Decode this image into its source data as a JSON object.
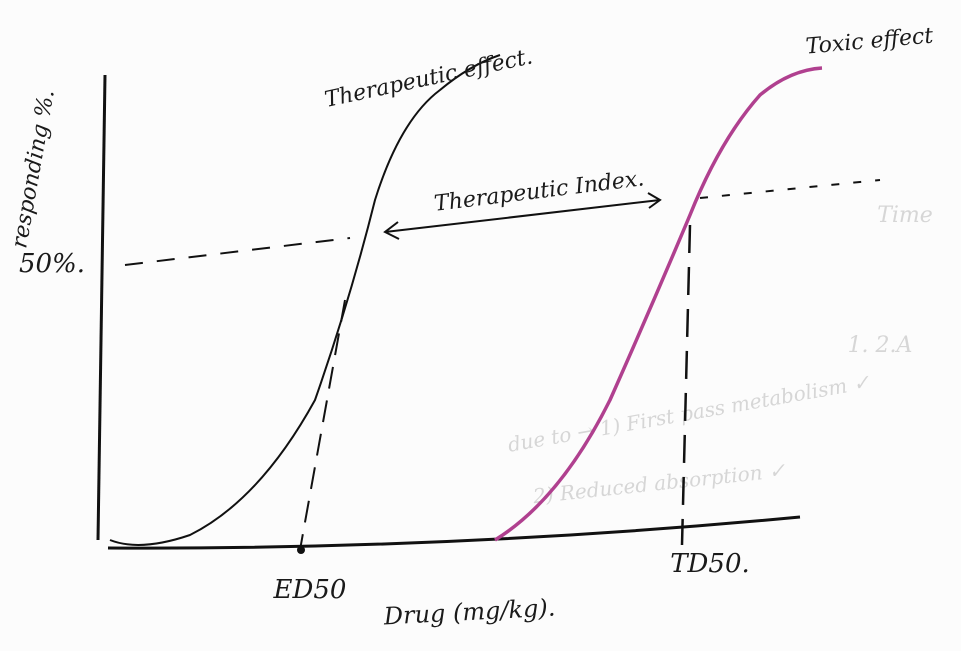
{
  "diagram": {
    "y_axis_label": "responding %.",
    "y_marker": "50%.",
    "x_axis_label": "Drug (mg/kg).",
    "ed50": "ED50",
    "td50": "TD50.",
    "therapeutic_curve": "Therapeutic effect.",
    "toxic_curve": "Toxic effect",
    "index_label": "Therapeutic Index.",
    "bleed_through": [
      "Time",
      "1. 2.A",
      "due to → 1) First pass metabolism ✓",
      "2) Reduced absorption ✓"
    ]
  }
}
